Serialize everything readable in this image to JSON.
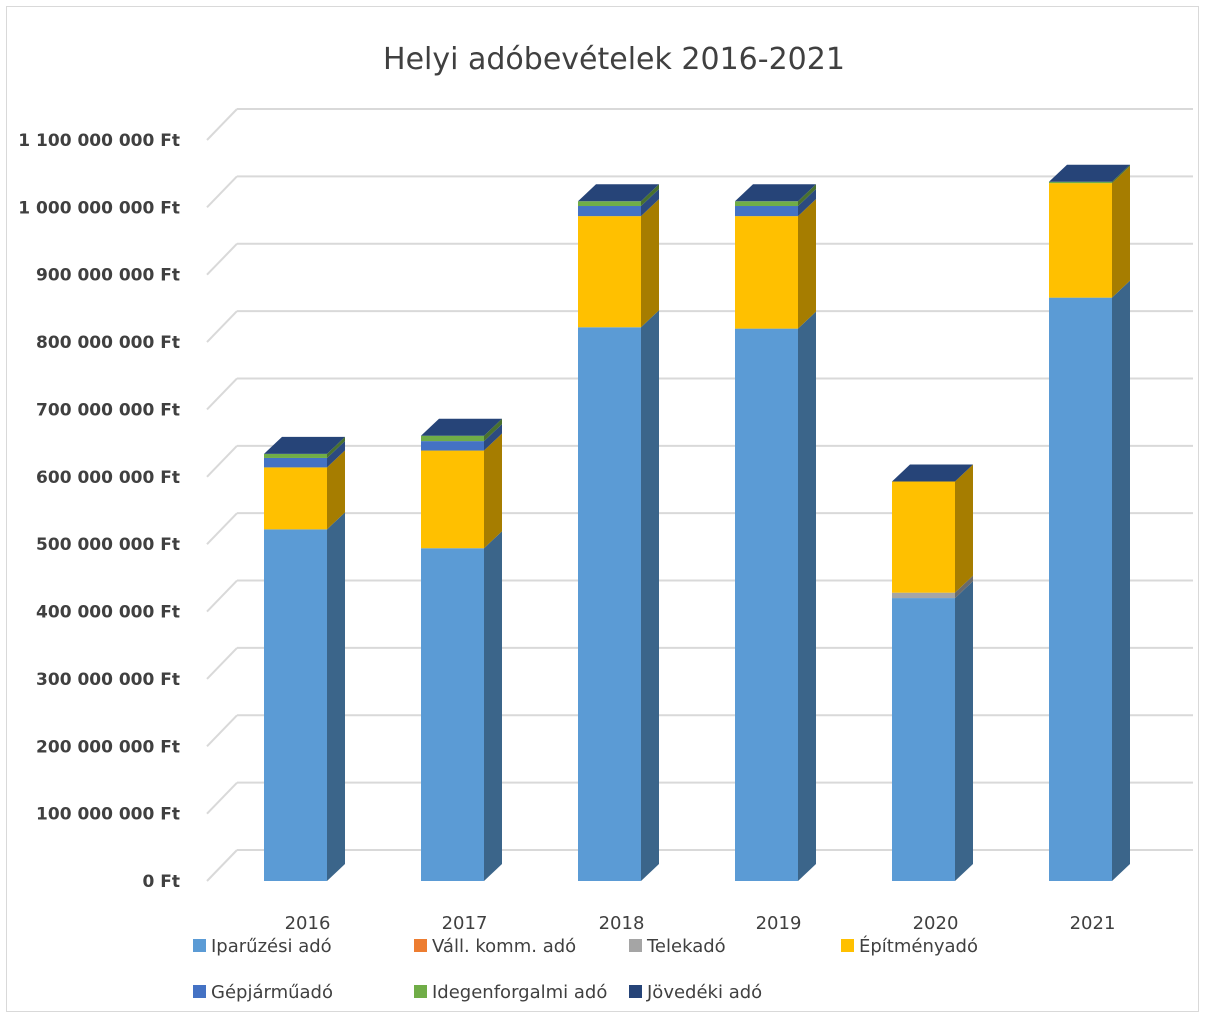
{
  "chart_data": {
    "type": "bar",
    "stacked": true,
    "three_d": true,
    "title": "Helyi adóbevételek 2016-2021",
    "categories": [
      "2016",
      "2017",
      "2018",
      "2019",
      "2020",
      "2021"
    ],
    "ylim": [
      0,
      1100000000
    ],
    "ytick_step": 100000000,
    "yticks": [
      "0 Ft",
      "100 000 000 Ft",
      "200 000 000 Ft",
      "300 000 000 Ft",
      "400 000 000 Ft",
      "500 000 000 Ft",
      "600 000 000 Ft",
      "700 000 000 Ft",
      "800 000 000 Ft",
      "900 000 000 Ft",
      "1 000 000 000 Ft",
      "1 100 000 000 Ft"
    ],
    "grid": true,
    "legend_position": "bottom",
    "series": [
      {
        "name": "Iparűzési adó",
        "color": "#5b9bd5",
        "values": [
          522000000,
          494000000,
          822000000,
          820000000,
          420000000,
          866000000
        ]
      },
      {
        "name": "Váll. komm. adó",
        "color": "#ed7d31",
        "values": [
          0,
          0,
          0,
          0,
          0,
          0
        ]
      },
      {
        "name": "Telekadó",
        "color": "#a5a5a5",
        "values": [
          0,
          0,
          0,
          0,
          8000000,
          0
        ]
      },
      {
        "name": "Építményadó",
        "color": "#ffc000",
        "values": [
          92000000,
          145000000,
          165000000,
          167000000,
          165000000,
          170000000
        ]
      },
      {
        "name": "Gépjárműadó",
        "color": "#4472c4",
        "values": [
          14000000,
          14000000,
          15000000,
          15000000,
          0,
          0
        ]
      },
      {
        "name": "Idegenforgalmi adó",
        "color": "#70ad47",
        "values": [
          6000000,
          8000000,
          7000000,
          7000000,
          0,
          2000000
        ]
      },
      {
        "name": "Jövedéki adó",
        "color": "#264478",
        "values": [
          0,
          0,
          0,
          0,
          0,
          0
        ]
      }
    ]
  }
}
